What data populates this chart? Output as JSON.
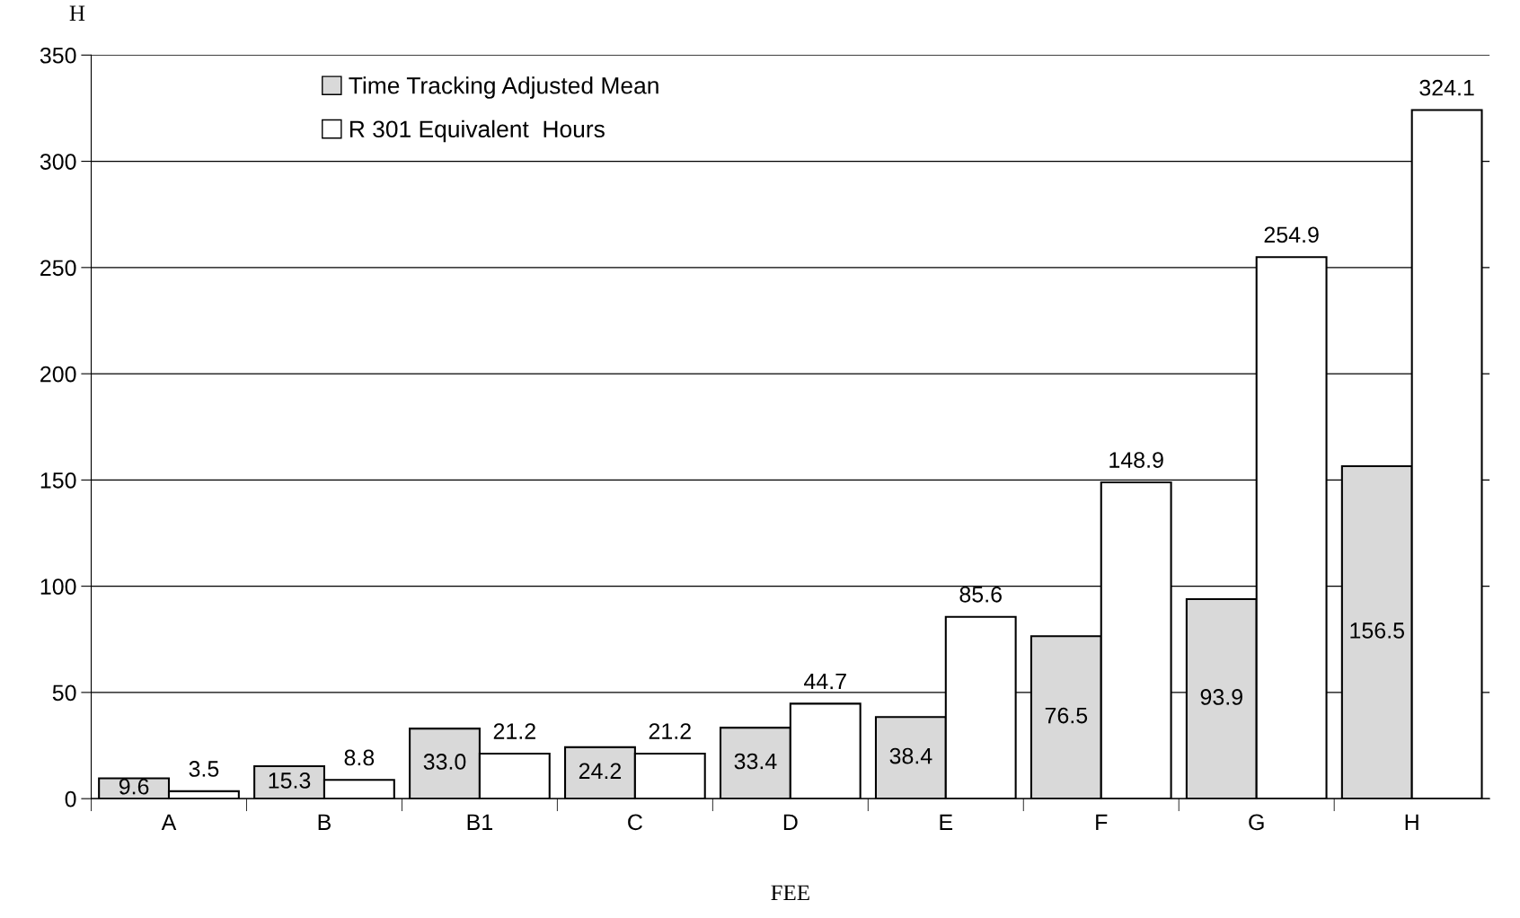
{
  "chart_data": {
    "type": "bar",
    "xlabel": "FEE",
    "ylabel": "H",
    "categories": [
      "A",
      "B",
      "B1",
      "C",
      "D",
      "E",
      "F",
      "G",
      "H"
    ],
    "series": [
      {
        "name": "Time Tracking Adjusted Mean",
        "color": "#d9d9d9",
        "values": [
          9.6,
          15.3,
          33.0,
          24.2,
          33.4,
          38.4,
          76.5,
          93.9,
          156.5
        ],
        "value_labels": [
          "9.6",
          "15.3",
          "33.0",
          "24.2",
          "33.4",
          "38.4",
          "76.5",
          "93.9",
          "156.5"
        ]
      },
      {
        "name": "R 301 Equivalent  Hours",
        "color": "#ffffff",
        "values": [
          3.5,
          8.8,
          21.2,
          21.2,
          44.7,
          85.6,
          148.9,
          254.9,
          324.1
        ],
        "value_labels": [
          "3.5",
          "8.8",
          "21.2",
          "21.2",
          "44.7",
          "85.6",
          "148.9",
          "254.9",
          "324.1"
        ]
      }
    ],
    "ylim": [
      0,
      350
    ],
    "yticks": [
      0,
      50,
      100,
      150,
      200,
      250,
      300,
      350
    ],
    "grid": "y",
    "legend": "top left"
  }
}
